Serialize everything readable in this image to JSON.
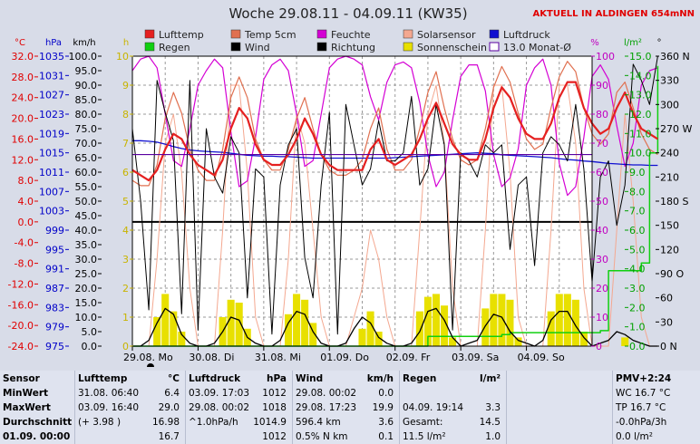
{
  "header": {
    "title": "Woche 29.08.11 - 04.09.11 (KW35)",
    "station": "AKTUELL IN ALDINGEN 654mNN"
  },
  "legend": [
    {
      "label": "Lufttemp",
      "color": "#e52020",
      "style": "box"
    },
    {
      "label": "Temp 5cm",
      "color": "#e07050",
      "style": "box"
    },
    {
      "label": "Feuchte",
      "color": "#d400d4",
      "style": "box"
    },
    {
      "label": "Solarsensor",
      "color": "#f4a890",
      "style": "box"
    },
    {
      "label": "Luftdruck",
      "color": "#1010d0",
      "style": "box"
    },
    {
      "label": "Regen",
      "color": "#10d010",
      "style": "box"
    },
    {
      "label": "Wind",
      "color": "#000000",
      "style": "box"
    },
    {
      "label": "Richtung",
      "color": "#000000",
      "style": "box"
    },
    {
      "label": "Sonnenschein",
      "color": "#e8e000",
      "style": "box"
    },
    {
      "label": "13.0 Monat-Ø",
      "color": "#5a00a0",
      "style": "outline"
    }
  ],
  "axes": {
    "temp": {
      "unit": "°C",
      "color": "#e00000",
      "ticks": [
        "32.0",
        "28.0",
        "24.0",
        "20.0",
        "16.0",
        "12.0",
        "8.0",
        "4.0",
        "0.0",
        "-4.0",
        "-8.0",
        "-12.0",
        "-16.0",
        "-20.0",
        "-24.0"
      ]
    },
    "pressure": {
      "unit": "hPa",
      "color": "#0000c8",
      "ticks": [
        "1035",
        "1031",
        "1027",
        "1023",
        "1019",
        "1015",
        "1011",
        "1007",
        "1003",
        "999",
        "995",
        "991",
        "987",
        "983",
        "979",
        "975"
      ]
    },
    "wind": {
      "unit": "km/h",
      "color": "#000000",
      "ticks": [
        "100.0",
        "95.0",
        "90.0",
        "85.0",
        "80.0",
        "75.0",
        "70.0",
        "65.0",
        "60.0",
        "55.0",
        "50.0",
        "45.0",
        "40.0",
        "35.0",
        "30.0",
        "25.0",
        "20.0",
        "15.0",
        "10.0",
        "5.0",
        "0.0"
      ]
    },
    "sun": {
      "unit": "h",
      "color": "#c8b400",
      "ticks": [
        "10",
        "9",
        "8",
        "7",
        "6",
        "5",
        "4",
        "3",
        "2",
        "1",
        "0"
      ]
    },
    "humidity": {
      "unit": "%",
      "color": "#c000c0",
      "ticks": [
        "100",
        "90",
        "80",
        "70",
        "60",
        "50",
        "40",
        "30",
        "20",
        "10",
        "0"
      ]
    },
    "rain": {
      "unit": "l/m²",
      "color": "#00a000",
      "ticks": [
        "15.0",
        "14.0",
        "13.0",
        "12.0",
        "11.0",
        "10.0",
        "9.0",
        "8.0",
        "7.0",
        "6.0",
        "5.0",
        "4.0",
        "3.0",
        "2.0",
        "1.0",
        "0.0"
      ]
    },
    "direction": {
      "unit": "°",
      "color": "#000000",
      "ticks": [
        "360 N",
        "330",
        "300",
        "270 W",
        "240",
        "210",
        "180 S",
        "150",
        "120",
        "90 O",
        "60",
        "30",
        "0 N"
      ]
    }
  },
  "chart_data": {
    "type": "line",
    "title": "Woche 29.08.11 - 04.09.11 (KW35)",
    "x_ticks": [
      "29.08. Mo",
      "30.08. Di",
      "31.08. Mi",
      "01.09. Do",
      "02.09. Fr",
      "03.09. Sa",
      "04.09. So"
    ],
    "hours_per_point": 3,
    "ylim_temp": [
      -24,
      32
    ],
    "series": [
      {
        "name": "Lufttemp",
        "axis": "temp",
        "color": "#e52020",
        "values": [
          10,
          9,
          8,
          10,
          14,
          17,
          16,
          13,
          11,
          10,
          9,
          12,
          18,
          22,
          20,
          15,
          12,
          11,
          11,
          13,
          16,
          20,
          17,
          13,
          11,
          10,
          10,
          10,
          10,
          14,
          16,
          12,
          11,
          12,
          13,
          16,
          20,
          23,
          19,
          15,
          13,
          12,
          12,
          16,
          22,
          26,
          24,
          20,
          17,
          16,
          16,
          19,
          24,
          27,
          27,
          22,
          19,
          17,
          18,
          22,
          25,
          21,
          18,
          17,
          16
        ]
      },
      {
        "name": "Temp 5cm",
        "axis": "temp",
        "color": "#e07050",
        "values": [
          8,
          7,
          7,
          11,
          20,
          25,
          21,
          14,
          10,
          8,
          8,
          14,
          24,
          28,
          24,
          16,
          12,
          10,
          10,
          14,
          20,
          24,
          18,
          13,
          10,
          9,
          9,
          10,
          12,
          18,
          22,
          14,
          10,
          10,
          12,
          18,
          25,
          29,
          22,
          16,
          12,
          11,
          12,
          18,
          26,
          30,
          27,
          21,
          16,
          14,
          15,
          22,
          28,
          31,
          29,
          22,
          17,
          15,
          17,
          25,
          27,
          22,
          17,
          14,
          13
        ]
      },
      {
        "name": "Feuchte",
        "axis": "humidity",
        "color": "#d400d4",
        "values": [
          95,
          99,
          100,
          96,
          80,
          64,
          62,
          75,
          90,
          95,
          99,
          96,
          74,
          55,
          57,
          72,
          92,
          97,
          99,
          95,
          80,
          62,
          64,
          80,
          96,
          99,
          100,
          99,
          97,
          86,
          78,
          91,
          97,
          98,
          96,
          84,
          66,
          55,
          60,
          78,
          93,
          97,
          97,
          88,
          66,
          55,
          58,
          68,
          90,
          96,
          99,
          90,
          63,
          52,
          55,
          72,
          93,
          97,
          92,
          76,
          62,
          70,
          90,
          95,
          96
        ]
      },
      {
        "name": "Solarsensor",
        "axis": "sun",
        "color": "#f4a890",
        "values": [
          0,
          0,
          0,
          3,
          7,
          8,
          6,
          2,
          0,
          0,
          0,
          4,
          9,
          9,
          6,
          1,
          0,
          0,
          0,
          3,
          8,
          7,
          4,
          1,
          0,
          0,
          0,
          1,
          2,
          4,
          3,
          1,
          0,
          0,
          0,
          4,
          8,
          9,
          7,
          2,
          0,
          0,
          0,
          4,
          9,
          9,
          6,
          1,
          0,
          0,
          0,
          4,
          9,
          9,
          7,
          2,
          0,
          0,
          0,
          4,
          8,
          5,
          1,
          0,
          0
        ]
      },
      {
        "name": "Luftdruck",
        "axis": "pressure",
        "color": "#1010d0",
        "values": [
          1017.5,
          1017.5,
          1017.4,
          1017.2,
          1016.8,
          1016.3,
          1015.9,
          1015.6,
          1015.4,
          1015.3,
          1015.2,
          1015.1,
          1014.9,
          1014.7,
          1014.5,
          1014.4,
          1014.3,
          1014.3,
          1014.2,
          1014.2,
          1014.1,
          1014.0,
          1013.9,
          1013.9,
          1013.9,
          1013.9,
          1013.9,
          1013.9,
          1013.9,
          1013.9,
          1013.9,
          1013.9,
          1014.0,
          1014.1,
          1014.2,
          1014.3,
          1014.4,
          1014.5,
          1014.6,
          1014.7,
          1014.8,
          1014.9,
          1015.0,
          1014.9,
          1014.8,
          1014.6,
          1014.5,
          1014.4,
          1014.3,
          1014.2,
          1014.1,
          1014.0,
          1013.8,
          1013.6,
          1013.5,
          1013.3,
          1013.2,
          1013.0,
          1012.8,
          1012.7,
          1012.6,
          1012.5,
          1012.5,
          1012.4,
          1012.4
        ]
      },
      {
        "name": "Regen",
        "axis": "rain",
        "color": "#10d010",
        "values": [
          0,
          0,
          0,
          0,
          0,
          0,
          0,
          0,
          0,
          0,
          0,
          0,
          0,
          0,
          0,
          0,
          0,
          0,
          0,
          0,
          0,
          0,
          0,
          0,
          0,
          0,
          0,
          0,
          0,
          0,
          0,
          0,
          0,
          0,
          0,
          0,
          0.5,
          0.5,
          0.5,
          0.5,
          0.5,
          0.5,
          0.5,
          0.5,
          0.5,
          0.6,
          0.7,
          0.7,
          0.7,
          0.7,
          0.7,
          0.7,
          0.7,
          0.7,
          0.7,
          0.7,
          0.7,
          0.8,
          3.9,
          3.9,
          3.9,
          3.9,
          4.3,
          10.0,
          14.5
        ]
      },
      {
        "name": "Wind",
        "axis": "wind",
        "color": "#000000",
        "values": [
          0,
          0,
          2,
          8,
          13,
          11,
          4,
          1,
          0,
          0,
          1,
          5,
          10,
          9,
          3,
          1,
          0,
          0,
          2,
          8,
          12,
          11,
          5,
          1,
          0,
          0,
          1,
          6,
          10,
          8,
          3,
          1,
          0,
          0,
          1,
          5,
          12,
          13,
          9,
          3,
          0,
          1,
          2,
          7,
          11,
          10,
          5,
          2,
          1,
          0,
          2,
          9,
          12,
          12,
          7,
          3,
          0,
          1,
          2,
          5,
          4,
          2,
          1,
          0,
          0
        ]
      },
      {
        "name": "Richtung",
        "axis": "direction",
        "color": "#000000",
        "values": [
          270,
          180,
          45,
          330,
          290,
          255,
          40,
          330,
          20,
          270,
          210,
          190,
          260,
          240,
          60,
          220,
          210,
          15,
          200,
          250,
          270,
          110,
          60,
          200,
          290,
          15,
          300,
          250,
          200,
          220,
          280,
          230,
          230,
          240,
          310,
          200,
          220,
          300,
          250,
          20,
          240,
          230,
          210,
          250,
          240,
          250,
          120,
          200,
          210,
          100,
          240,
          260,
          250,
          230,
          300,
          220,
          80,
          210,
          230,
          150,
          200,
          350,
          330,
          300,
          360
        ]
      },
      {
        "name": "Sonnenschein",
        "axis": "sun",
        "color": "#e8e000",
        "values": [
          0,
          0,
          0,
          1,
          1.8,
          1.2,
          0.5,
          0,
          0,
          0,
          0,
          1,
          1.6,
          1.5,
          0.6,
          0,
          0,
          0,
          0,
          1.1,
          1.8,
          1.6,
          0.8,
          0,
          0,
          0,
          0,
          0,
          0.6,
          1.2,
          0.5,
          0,
          0,
          0,
          0,
          1.2,
          1.7,
          1.8,
          1.4,
          0.3,
          0,
          0,
          0,
          1.3,
          1.8,
          1.8,
          1.6,
          0.3,
          0,
          0,
          0,
          1.2,
          1.8,
          1.8,
          1.6,
          0.5,
          0,
          0,
          0,
          0,
          0.3,
          0,
          0,
          0,
          0
        ]
      },
      {
        "name": "13.0 Monat-Ø",
        "axis": "temp",
        "color": "#5a00a0",
        "values": [
          13,
          13
        ]
      }
    ]
  },
  "stats": {
    "sensor": {
      "title": "Sensor",
      "rows": [
        "MinWert",
        "MaxWert",
        "Durchschnitt",
        "01.09. 00:00"
      ]
    },
    "lufttemp": {
      "title": "Lufttemp",
      "unit": "°C",
      "rows": [
        {
          "date": "31.08.",
          "time": "06:40",
          "value": "6.4"
        },
        {
          "date": "03.09.",
          "time": "16:40",
          "value": "29.0"
        },
        {
          "date": "(+ 3.98 )",
          "time": "",
          "value": "16.98"
        },
        {
          "date": "",
          "time": "",
          "value": "16.7"
        }
      ]
    },
    "luftdruck": {
      "title": "Luftdruck",
      "unit": "hPa",
      "rows": [
        {
          "date": "03.09.",
          "time": "17:03",
          "value": "1012"
        },
        {
          "date": "29.08.",
          "time": "00:02",
          "value": "1018"
        },
        {
          "date": "^1.0hPa/h",
          "time": "",
          "value": "1014.9"
        },
        {
          "date": "",
          "time": "",
          "value": "1012"
        }
      ]
    },
    "wind": {
      "title": "Wind",
      "unit": "km/h",
      "rows": [
        {
          "date": "29.08.",
          "time": "00:02",
          "value": "0.0"
        },
        {
          "date": "29.08.",
          "time": "17:23",
          "value": "19.9"
        },
        {
          "date": "596.4 km",
          "time": "",
          "value": "3.6"
        },
        {
          "date": "0.5% N km",
          "time": "",
          "value": "0.1"
        }
      ]
    },
    "regen": {
      "title": "Regen",
      "unit": "l/m²",
      "rows": [
        {
          "date": "",
          "time": "",
          "value": ""
        },
        {
          "date": "04.09.",
          "time": "19:14",
          "value": "3.3"
        },
        {
          "date": "Gesamt:",
          "time": "",
          "value": "14.5"
        },
        {
          "date": "11.5 l/m²",
          "time": "",
          "value": "1.0"
        }
      ]
    },
    "pmv": {
      "title": "PMV+2:24",
      "rows": [
        "WC 16.7 °C",
        "TP 16.7 °C",
        "-0.0hPa/3h",
        "0.0 l/m²"
      ]
    }
  }
}
